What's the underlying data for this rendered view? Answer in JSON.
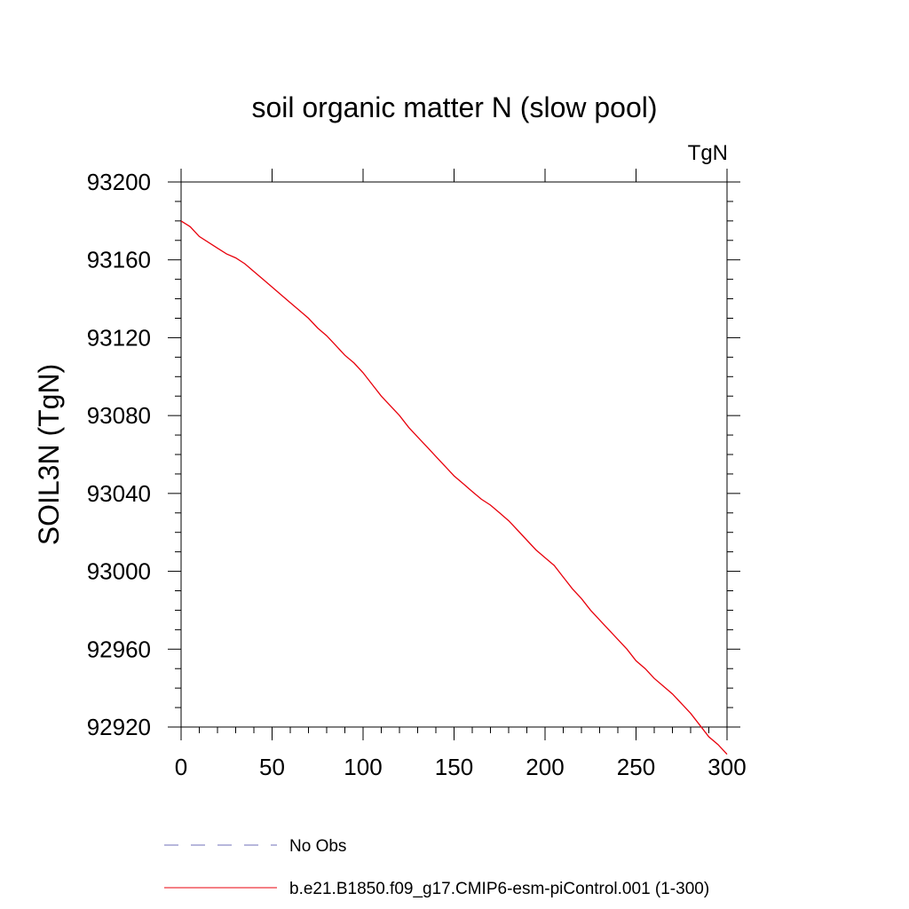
{
  "chart_data": {
    "type": "line",
    "title": "soil organic matter N (slow pool)",
    "units_label": "TgN",
    "xlabel": "",
    "ylabel": "SOIL3N  (TgN)",
    "xlim": [
      0,
      300
    ],
    "ylim": [
      92920,
      93200
    ],
    "x_ticks": [
      0,
      50,
      100,
      150,
      200,
      250,
      300
    ],
    "x_tick_labels": [
      "0",
      "50",
      "100",
      "150",
      "200",
      "250",
      "300"
    ],
    "y_ticks": [
      92920,
      92960,
      93000,
      93040,
      93080,
      93120,
      93160,
      93200
    ],
    "y_tick_labels": [
      "92920",
      "92960",
      "93000",
      "93040",
      "93080",
      "93120",
      "93160",
      "93200"
    ],
    "grid": false,
    "series": [
      {
        "name": "No Obs",
        "color": "#6f6fb8",
        "dash": "dashed",
        "x": [],
        "y": []
      },
      {
        "name": "b.e21.B1850.f09_g17.CMIP6-esm-piControl.001 (1-300)",
        "color": "#e8000b",
        "dash": "solid",
        "x": [
          0,
          5,
          10,
          20,
          25,
          30,
          35,
          40,
          45,
          50,
          55,
          60,
          65,
          70,
          75,
          80,
          85,
          90,
          95,
          100,
          105,
          110,
          115,
          120,
          125,
          130,
          135,
          140,
          145,
          150,
          155,
          160,
          165,
          170,
          175,
          180,
          185,
          190,
          195,
          200,
          205,
          210,
          215,
          220,
          225,
          230,
          235,
          240,
          245,
          250,
          255,
          260,
          265,
          270,
          275,
          280,
          285,
          290,
          295,
          300
        ],
        "y": [
          93180,
          93177,
          93172,
          93166,
          93163,
          93161,
          93158,
          93154,
          93150,
          93146,
          93142,
          93138,
          93134,
          93130,
          93125,
          93121,
          93116,
          93111,
          93107,
          93102,
          93096,
          93090,
          93085,
          93080,
          93074,
          93069,
          93064,
          93059,
          93054,
          93049,
          93045,
          93041,
          93037,
          93034,
          93030,
          93026,
          93021,
          93016,
          93011,
          93007,
          93003,
          92997,
          92991,
          92986,
          92980,
          92975,
          92970,
          92965,
          92960,
          92954,
          92950,
          92945,
          92941,
          92937,
          92932,
          92927,
          92921,
          92915,
          92911,
          92906
        ]
      }
    ],
    "legend_position": "bottom"
  }
}
